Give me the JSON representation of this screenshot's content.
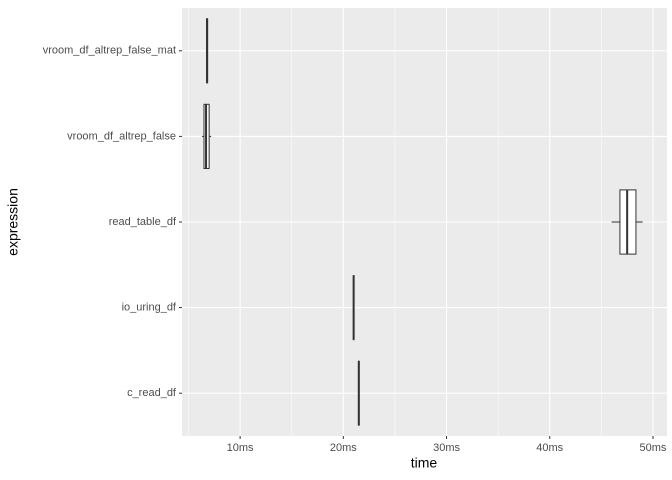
{
  "chart_data": {
    "type": "boxplot",
    "orientation": "horizontal",
    "x_label": "time",
    "y_label": "expression",
    "categories": [
      "c_read_df",
      "io_uring_df",
      "read_table_df",
      "vroom_df_altrep_false",
      "vroom_df_altrep_false_mat"
    ],
    "min": [
      21.45,
      20.95,
      46.0,
      6.3,
      6.7
    ],
    "q1": [
      21.48,
      20.98,
      46.8,
      6.5,
      6.75
    ],
    "median": [
      21.5,
      21.0,
      47.5,
      6.7,
      6.8
    ],
    "q3": [
      21.52,
      21.02,
      48.35,
      7.0,
      6.85
    ],
    "max": [
      21.55,
      21.05,
      49.0,
      7.2,
      6.9
    ],
    "xlim": [
      4.37,
      51.36
    ],
    "xticks": [
      {
        "value": 10,
        "label": "10ms"
      },
      {
        "value": 20,
        "label": "20ms"
      },
      {
        "value": 30,
        "label": "30ms"
      },
      {
        "value": 40,
        "label": "40ms"
      },
      {
        "value": 50,
        "label": "50ms"
      }
    ],
    "grid": true,
    "color": "#333333",
    "fill": "#ffffff",
    "panel_color": "#ebebeb"
  }
}
